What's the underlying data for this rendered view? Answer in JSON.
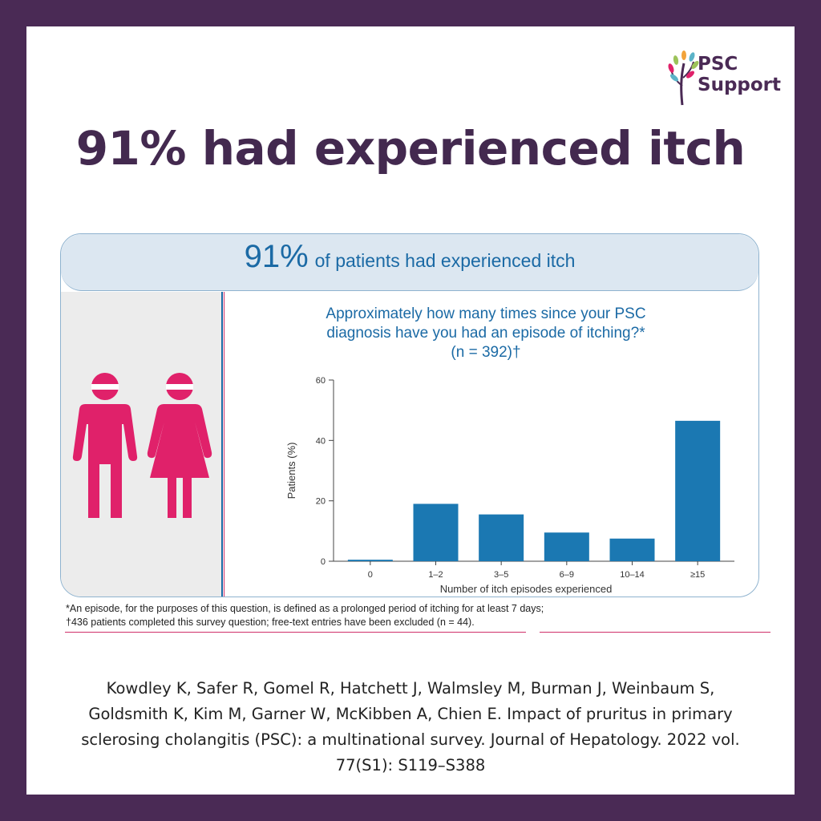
{
  "logo": {
    "line1": "PSC",
    "line2": "Support"
  },
  "headline": "91% had experienced itch",
  "banner": {
    "percent": "91%",
    "text": "of patients had experienced itch"
  },
  "question": {
    "line1": "Approximately how many times since your PSC",
    "line2": "diagnosis have you had an episode of itching?*",
    "line3": "(n = 392)†"
  },
  "colors": {
    "frame": "#4a2a55",
    "bar": "#1b78b2",
    "figure": "#e0216a",
    "accent": "#1b6aa5"
  },
  "chart_data": {
    "type": "bar",
    "categories": [
      "0",
      "1–2",
      "3–5",
      "6–9",
      "10–14",
      "≥15"
    ],
    "values": [
      0.5,
      19,
      15.5,
      9.5,
      7.5,
      46.5
    ],
    "xlabel": "Number of itch episodes experienced",
    "ylabel": "Patients (%)",
    "ylim": [
      0,
      60
    ],
    "yticks": [
      0,
      20,
      40,
      60
    ],
    "grid": false
  },
  "footnotes": {
    "line1": "*An episode, for the purposes of this question, is defined as a prolonged period of itching for at least 7 days;",
    "line2": "†436 patients completed this survey question; free-text entries have been excluded (n = 44)."
  },
  "citation": {
    "line1": "Kowdley K, Safer R, Gomel R, Hatchett J, Walmsley M, Burman J, Weinbaum S,",
    "line2": "Goldsmith K, Kim M, Garner W, McKibben A, Chien E. Impact of pruritus in primary",
    "line3": "sclerosing cholangitis (PSC): a multinational survey. Journal of Hepatology. 2022 vol.",
    "line4": "77(S1): S119–S388"
  }
}
